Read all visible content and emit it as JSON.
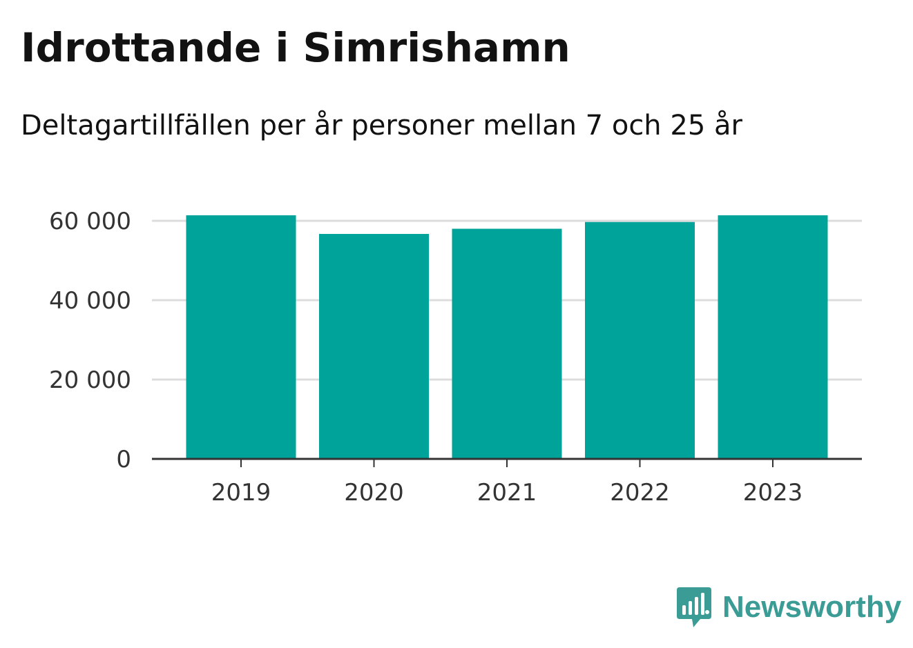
{
  "header": {
    "title": "Idrottande i Simrishamn",
    "subtitle": "Deltagartillfällen per år personer mellan 7 och 25 år"
  },
  "branding": {
    "name": "Newsworthy",
    "icon": "newsworthy-logo-icon",
    "color": "#3b9c95"
  },
  "colors": {
    "bar": "#00a39a",
    "grid": "#dcdcdc",
    "axis": "#333333",
    "text": "#333333"
  },
  "chart_data": {
    "type": "bar",
    "categories": [
      "2019",
      "2020",
      "2021",
      "2022",
      "2023"
    ],
    "values": [
      61400,
      56700,
      58000,
      59700,
      61400
    ],
    "ylim": [
      0,
      60000
    ],
    "yticks": [
      0,
      20000,
      40000,
      60000
    ],
    "ytick_labels": [
      "0",
      "20 000",
      "40 000",
      "60 000"
    ],
    "grid": true,
    "legend": false
  }
}
